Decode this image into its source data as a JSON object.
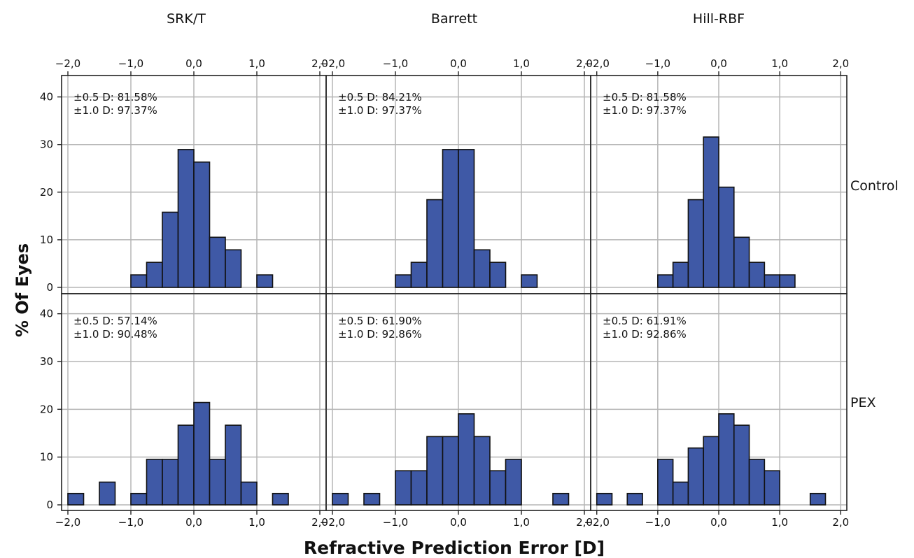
{
  "figure": {
    "xlabel": "Refractive Prediction Error [D]",
    "ylabel": "% Of Eyes",
    "columns": [
      "SRK/T",
      "Barrett",
      "Hill-RBF"
    ],
    "rows": [
      "Control",
      "PEX"
    ]
  },
  "chart_data": {
    "type": "bar",
    "layout": "2x3 facet grid of histograms",
    "bin_width": 0.25,
    "xlim": [
      -2.1,
      2.1
    ],
    "ylim": [
      0,
      42
    ],
    "x_ticks": [
      "-2,0",
      "-1,0",
      "0,0",
      "1,0",
      "2,0"
    ],
    "x_tick_values": [
      -2,
      -1,
      0,
      1,
      2
    ],
    "y_ticks": [
      "0",
      "10",
      "20",
      "30",
      "40"
    ],
    "y_tick_values": [
      0,
      10,
      20,
      30,
      40
    ],
    "grid": true,
    "panels": [
      {
        "column": "SRK/T",
        "row": "Control",
        "annotation": [
          "±0.5 D: 81.58%",
          "±1.0 D: 97.37%"
        ],
        "bins": [
          [
            -1.0,
            2.63
          ],
          [
            -0.75,
            5.26
          ],
          [
            -0.5,
            15.79
          ],
          [
            -0.25,
            28.95
          ],
          [
            0.0,
            26.32
          ],
          [
            0.25,
            10.53
          ],
          [
            0.5,
            7.89
          ],
          [
            1.0,
            2.63
          ]
        ]
      },
      {
        "column": "Barrett",
        "row": "Control",
        "annotation": [
          "±0.5 D: 84.21%",
          "±1.0 D: 97.37%"
        ],
        "bins": [
          [
            -1.0,
            2.63
          ],
          [
            -0.75,
            5.26
          ],
          [
            -0.5,
            18.42
          ],
          [
            -0.25,
            28.95
          ],
          [
            0.0,
            28.95
          ],
          [
            0.25,
            7.89
          ],
          [
            0.5,
            5.26
          ],
          [
            1.0,
            2.63
          ]
        ]
      },
      {
        "column": "Hill-RBF",
        "row": "Control",
        "annotation": [
          "±0.5 D: 81.58%",
          "±1.0 D: 97.37%"
        ],
        "bins": [
          [
            -1.0,
            2.63
          ],
          [
            -0.75,
            5.26
          ],
          [
            -0.5,
            18.42
          ],
          [
            -0.25,
            31.58
          ],
          [
            0.0,
            21.05
          ],
          [
            0.25,
            10.53
          ],
          [
            0.5,
            5.26
          ],
          [
            0.75,
            2.63
          ],
          [
            1.0,
            2.63
          ]
        ]
      },
      {
        "column": "SRK/T",
        "row": "PEX",
        "annotation": [
          "±0.5 D: 57.14%",
          "±1.0 D: 90.48%"
        ],
        "bins": [
          [
            -2.0,
            2.38
          ],
          [
            -1.5,
            4.76
          ],
          [
            -1.0,
            2.38
          ],
          [
            -0.75,
            9.52
          ],
          [
            -0.5,
            9.52
          ],
          [
            -0.25,
            16.67
          ],
          [
            0.0,
            21.43
          ],
          [
            0.25,
            9.52
          ],
          [
            0.5,
            16.67
          ],
          [
            0.75,
            4.76
          ],
          [
            1.25,
            2.38
          ]
        ]
      },
      {
        "column": "Barrett",
        "row": "PEX",
        "annotation": [
          "±0.5 D: 61.90%",
          "±1.0 D: 92.86%"
        ],
        "bins": [
          [
            -2.0,
            2.38
          ],
          [
            -1.5,
            2.38
          ],
          [
            -1.0,
            7.14
          ],
          [
            -0.75,
            7.14
          ],
          [
            -0.5,
            14.29
          ],
          [
            -0.25,
            14.29
          ],
          [
            0.0,
            19.05
          ],
          [
            0.25,
            14.29
          ],
          [
            0.5,
            7.14
          ],
          [
            0.75,
            9.52
          ],
          [
            1.5,
            2.38
          ]
        ]
      },
      {
        "column": "Hill-RBF",
        "row": "PEX",
        "annotation": [
          "±0.5 D: 61.91%",
          "±1.0 D: 92.86%"
        ],
        "bins": [
          [
            -2.0,
            2.38
          ],
          [
            -1.5,
            2.38
          ],
          [
            -1.0,
            9.52
          ],
          [
            -0.75,
            4.76
          ],
          [
            -0.5,
            11.9
          ],
          [
            -0.25,
            14.29
          ],
          [
            0.0,
            19.05
          ],
          [
            0.25,
            16.67
          ],
          [
            0.5,
            9.52
          ],
          [
            0.75,
            7.14
          ],
          [
            1.5,
            2.38
          ]
        ]
      }
    ]
  }
}
